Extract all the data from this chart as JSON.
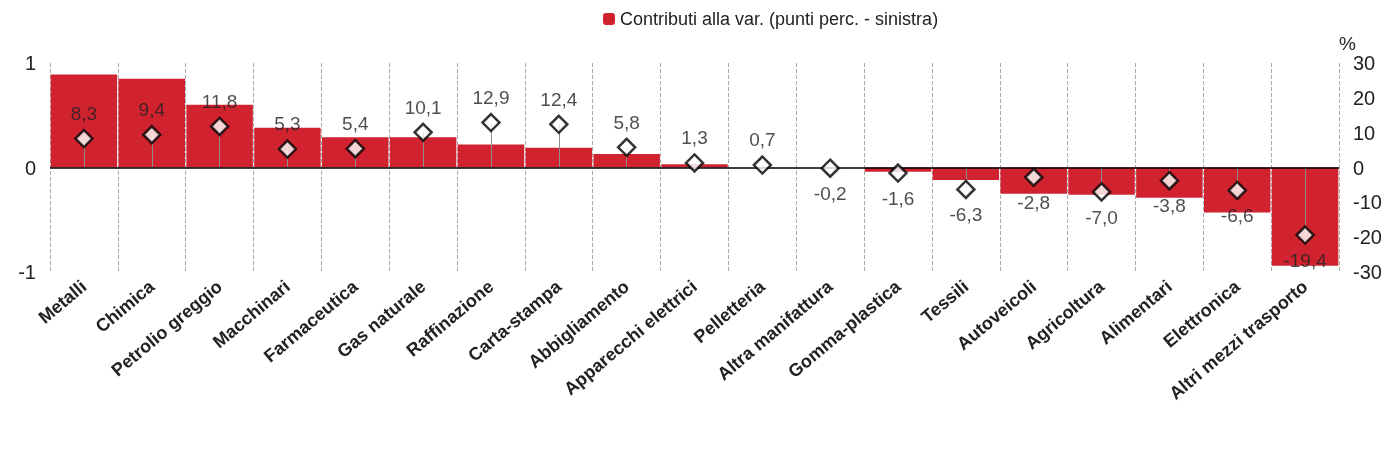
{
  "chart_data": {
    "type": "bar",
    "categories": [
      "Metalli",
      "Chimica",
      "Petrolio greggio",
      "Macchinari",
      "Farmaceutica",
      "Gas naturale",
      "Raffinazione",
      "Carta-stampa",
      "Abbigliamento",
      "Apparecchi elettrici",
      "Pelletteria",
      "Altra manifattura",
      "Gomma-plastica",
      "Tessili",
      "Autoveicoli",
      "Agricoltura",
      "Alimentari",
      "Elettronica",
      "Altri mezzi trasporto"
    ],
    "series": [
      {
        "name": "Contributi alla var. (punti perc. - sinistra)",
        "color": "#d0232f",
        "values": [
          0.89,
          0.85,
          0.6,
          0.38,
          0.29,
          0.29,
          0.22,
          0.19,
          0.13,
          0.03,
          0,
          0,
          -0.04,
          -0.12,
          -0.25,
          -0.26,
          -0.29,
          -0.43,
          -0.94
        ]
      },
      {
        "type": "lollipop",
        "axis": "y2",
        "color": "#ffffff",
        "marker": "diamond",
        "values": [
          8.3,
          9.4,
          11.8,
          5.3,
          5.4,
          10.1,
          12.9,
          12.4,
          5.8,
          1.3,
          0.7,
          -0.2,
          -1.6,
          -6.3,
          -2.8,
          -7.0,
          -3.8,
          -6.6,
          -19.4
        ],
        "value_labels": [
          "8,3",
          "9,4",
          "11,8",
          "5,3",
          "5,4",
          "10,1",
          "12,9",
          "12,4",
          "5,8",
          "1,3",
          "0,7",
          "-0,2",
          "-1,6",
          "-6,3",
          "-2,8",
          "-7,0",
          "-3,8",
          "-6,6",
          "-19,4"
        ]
      }
    ],
    "ylim": [
      -1,
      1
    ],
    "yticks": [
      -1,
      0,
      1
    ],
    "y2lim": [
      -30,
      30
    ],
    "y2ticks": [
      -30,
      -20,
      -10,
      0,
      10,
      20,
      30
    ],
    "y2label": "%",
    "grid": "x",
    "legend": "top"
  }
}
